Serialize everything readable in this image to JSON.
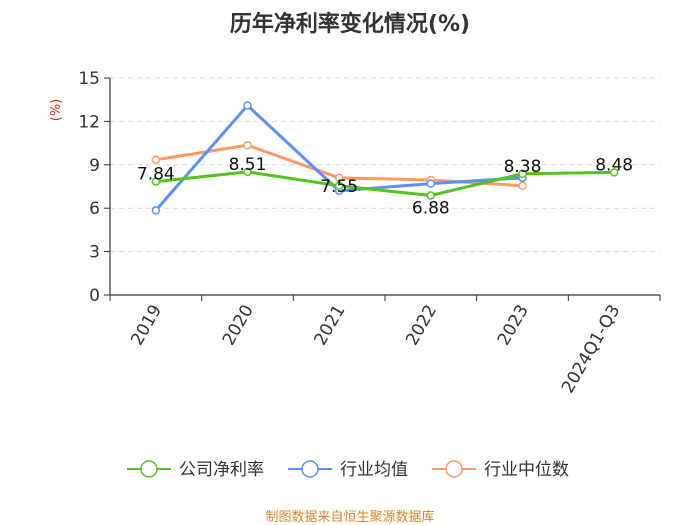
{
  "chart_data": {
    "type": "line",
    "title": "历年净利率变化情况(%)",
    "ylabel": "(%)",
    "ylim": [
      0,
      15
    ],
    "yticks": [
      0,
      3,
      6,
      9,
      12,
      15
    ],
    "grid": true,
    "legend_position": "bottom",
    "categories": [
      "2019",
      "2020",
      "2021",
      "2022",
      "2023",
      "2024Q1-Q3"
    ],
    "series": [
      {
        "name": "公司净利率",
        "color": "#52c41a",
        "values": [
          7.84,
          8.51,
          7.55,
          6.88,
          8.38,
          8.48
        ],
        "labels": [
          "7.84",
          "8.51",
          "7.55",
          "6.88",
          "8.38",
          "8.48"
        ]
      },
      {
        "name": "行业均值",
        "color": "#5b8ff9",
        "values": [
          5.85,
          13.1,
          7.2,
          7.7,
          8.1,
          null
        ]
      },
      {
        "name": "行业中位数",
        "color": "#ff9966",
        "values": [
          9.35,
          10.35,
          8.1,
          7.95,
          7.55,
          null
        ]
      }
    ],
    "ylabel_color": "#e02020"
  },
  "source": "制图数据来自恒生聚源数据库"
}
